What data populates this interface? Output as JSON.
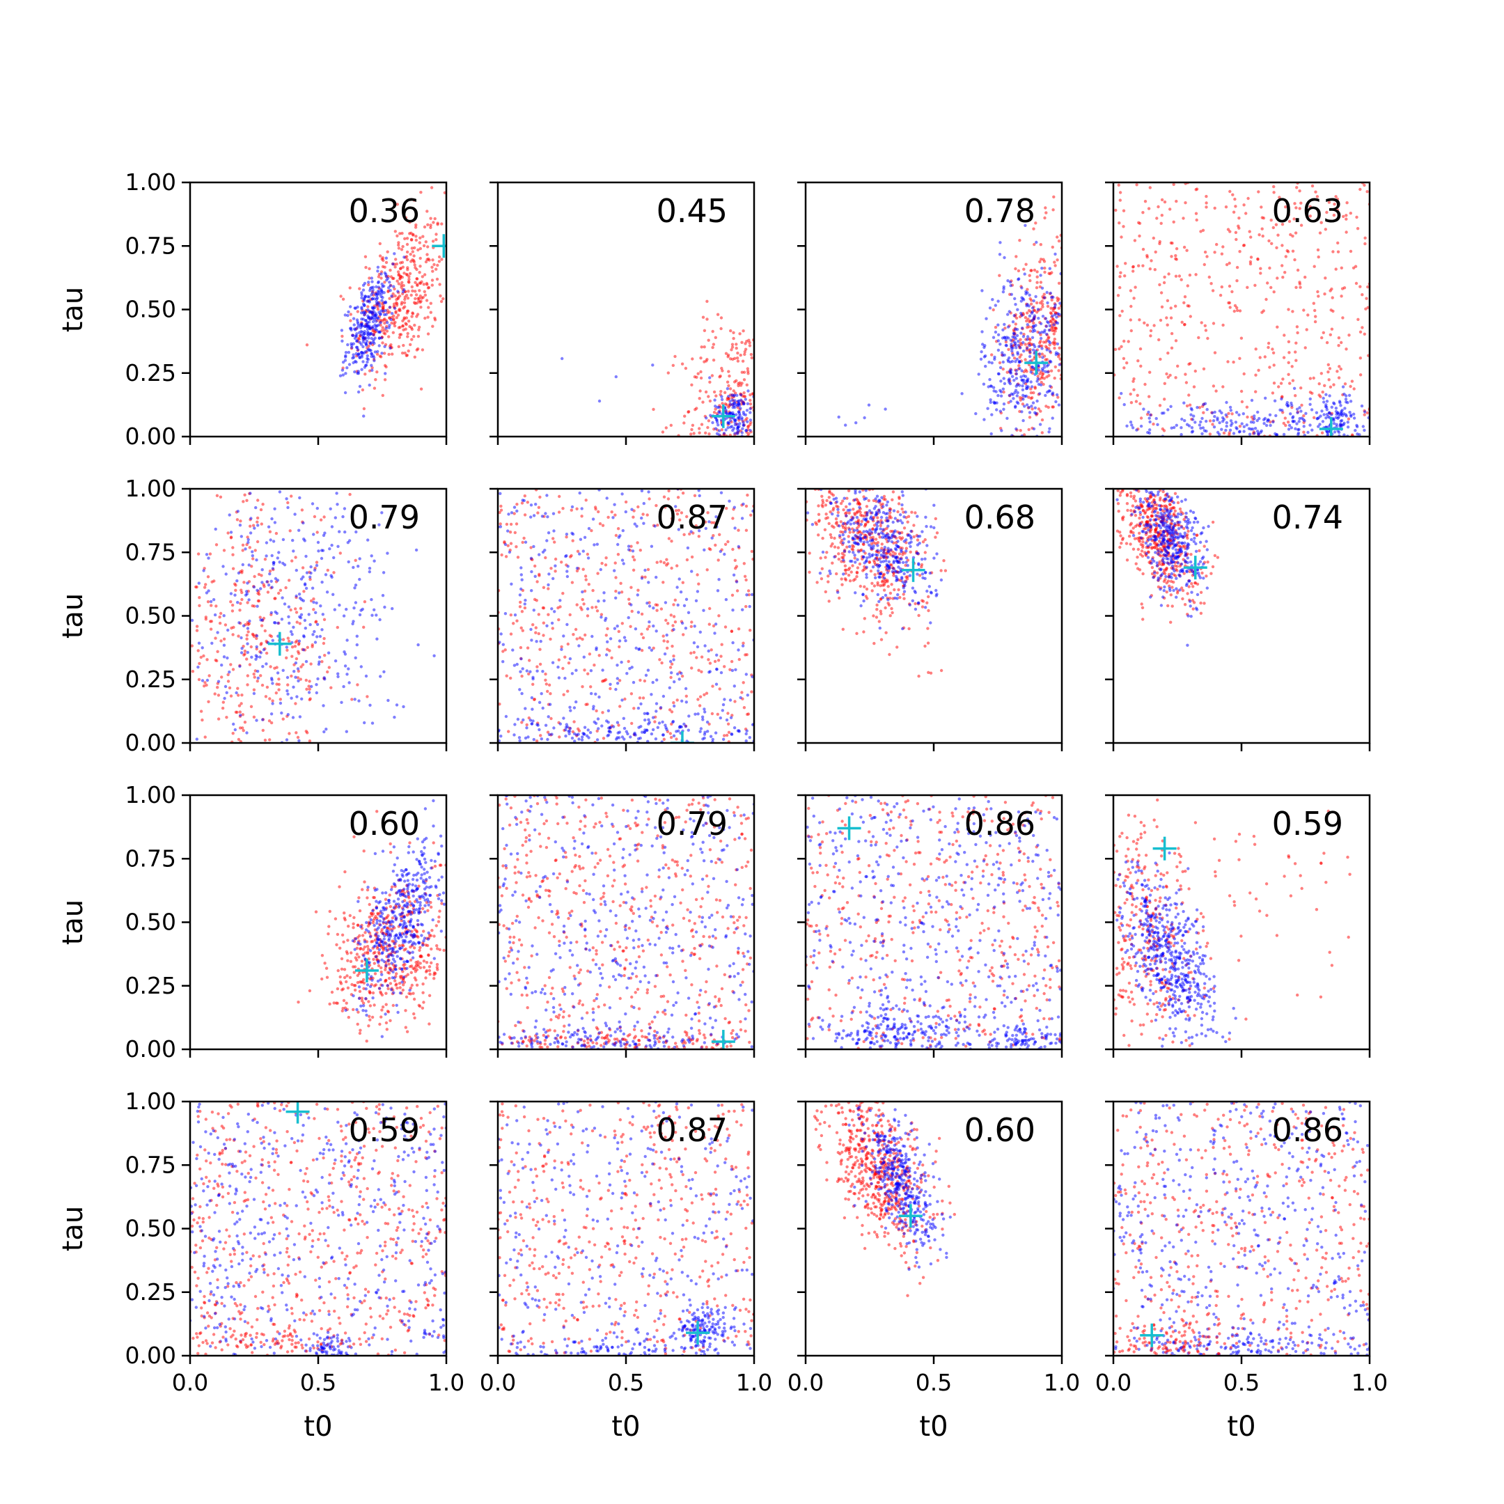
{
  "figure": {
    "rows": 4,
    "cols": 4,
    "sharex": true,
    "sharey": true,
    "xlim": [
      0,
      1
    ],
    "ylim": [
      0,
      1
    ],
    "xticks": [
      "0.0",
      "0.5",
      "1.0"
    ],
    "yticks": [
      "0.00",
      "0.25",
      "0.50",
      "0.75",
      "1.00"
    ],
    "xlabel": "t0",
    "ylabel": "tau",
    "colors": {
      "series_a": "#ff0000",
      "series_b": "#0000ff",
      "marker": "#17becf"
    }
  },
  "chart_data": [
    {
      "type": "scatter",
      "value_label": "0.36",
      "marker": {
        "x": 0.99,
        "y": 0.75
      },
      "clusters": [
        {
          "color": "series_a",
          "n": 420,
          "cx": 0.82,
          "cy": 0.55,
          "sx": 0.09,
          "sy": 0.16,
          "rho": 0.4
        },
        {
          "color": "series_b",
          "n": 320,
          "cx": 0.7,
          "cy": 0.44,
          "sx": 0.045,
          "sy": 0.1,
          "rho": 0.5
        }
      ]
    },
    {
      "type": "scatter",
      "value_label": "0.45",
      "marker": {
        "x": 0.88,
        "y": 0.08
      },
      "clusters": [
        {
          "color": "series_a",
          "n": 350,
          "cx": 0.92,
          "cy": 0.12,
          "sx": 0.1,
          "sy": 0.18,
          "rho": 0.1
        },
        {
          "color": "series_b",
          "n": 150,
          "cx": 0.92,
          "cy": 0.08,
          "sx": 0.04,
          "sy": 0.05,
          "rho": 0
        },
        {
          "color": "series_b",
          "n": 6,
          "cx": 0.25,
          "cy": 0.18,
          "sx": 0.18,
          "sy": 0.12,
          "rho": 0
        }
      ]
    },
    {
      "type": "scatter",
      "value_label": "0.78",
      "marker": {
        "x": 0.9,
        "y": 0.29
      },
      "clusters": [
        {
          "color": "series_a",
          "n": 380,
          "cx": 0.92,
          "cy": 0.4,
          "sx": 0.08,
          "sy": 0.2,
          "rho": 0.2
        },
        {
          "color": "series_b",
          "n": 380,
          "cx": 0.85,
          "cy": 0.32,
          "sx": 0.08,
          "sy": 0.18,
          "rho": 0.2
        },
        {
          "color": "series_b",
          "n": 8,
          "cx": 0.2,
          "cy": 0.05,
          "sx": 0.15,
          "sy": 0.05,
          "rho": 0
        }
      ]
    },
    {
      "type": "scatter",
      "value_label": "0.63",
      "marker": {
        "x": 0.85,
        "y": 0.03
      },
      "clusters": [
        {
          "color": "series_a",
          "n": 500,
          "uniform": true
        },
        {
          "color": "series_b",
          "n": 250,
          "cx": 0.5,
          "cy": 0.05,
          "sx": 0.3,
          "sy": 0.05,
          "rho": 0
        },
        {
          "color": "series_b",
          "n": 120,
          "cx": 0.87,
          "cy": 0.06,
          "sx": 0.05,
          "sy": 0.05,
          "rho": 0
        }
      ]
    },
    {
      "type": "scatter",
      "value_label": "0.79",
      "marker": {
        "x": 0.35,
        "y": 0.39
      },
      "clusters": [
        {
          "color": "series_a",
          "n": 400,
          "cx": 0.25,
          "cy": 0.4,
          "sx": 0.18,
          "sy": 0.3,
          "rho": 0
        },
        {
          "color": "series_b",
          "n": 420,
          "cx": 0.38,
          "cy": 0.5,
          "sx": 0.22,
          "sy": 0.3,
          "rho": 0
        }
      ]
    },
    {
      "type": "scatter",
      "value_label": "0.87",
      "marker": {
        "x": 0.72,
        "y": 0.0
      },
      "clusters": [
        {
          "color": "series_a",
          "n": 450,
          "uniform": true
        },
        {
          "color": "series_b",
          "n": 350,
          "uniform": true
        },
        {
          "color": "series_b",
          "n": 200,
          "cx": 0.5,
          "cy": 0.03,
          "sx": 0.35,
          "sy": 0.04,
          "rho": 0
        }
      ]
    },
    {
      "type": "scatter",
      "value_label": "0.68",
      "marker": {
        "x": 0.42,
        "y": 0.68
      },
      "clusters": [
        {
          "color": "series_a",
          "n": 520,
          "cx": 0.25,
          "cy": 0.8,
          "sx": 0.12,
          "sy": 0.16,
          "rho": -0.4
        },
        {
          "color": "series_b",
          "n": 380,
          "cx": 0.3,
          "cy": 0.78,
          "sx": 0.1,
          "sy": 0.13,
          "rho": -0.4
        }
      ]
    },
    {
      "type": "scatter",
      "value_label": "0.74",
      "marker": {
        "x": 0.32,
        "y": 0.69
      },
      "clusters": [
        {
          "color": "series_a",
          "n": 500,
          "cx": 0.17,
          "cy": 0.84,
          "sx": 0.08,
          "sy": 0.13,
          "rho": -0.5
        },
        {
          "color": "series_b",
          "n": 380,
          "cx": 0.22,
          "cy": 0.8,
          "sx": 0.07,
          "sy": 0.12,
          "rho": -0.5
        }
      ]
    },
    {
      "type": "scatter",
      "value_label": "0.60",
      "marker": {
        "x": 0.69,
        "y": 0.31
      },
      "clusters": [
        {
          "color": "series_a",
          "n": 520,
          "cx": 0.78,
          "cy": 0.38,
          "sx": 0.12,
          "sy": 0.16,
          "rho": 0.3
        },
        {
          "color": "series_b",
          "n": 420,
          "cx": 0.82,
          "cy": 0.5,
          "sx": 0.08,
          "sy": 0.15,
          "rho": 0.6
        }
      ]
    },
    {
      "type": "scatter",
      "value_label": "0.79",
      "marker": {
        "x": 0.88,
        "y": 0.03
      },
      "clusters": [
        {
          "color": "series_a",
          "n": 450,
          "uniform": true
        },
        {
          "color": "series_b",
          "n": 380,
          "uniform": true
        },
        {
          "color": "series_a",
          "n": 150,
          "cx": 0.5,
          "cy": 0.03,
          "sx": 0.35,
          "sy": 0.03,
          "rho": 0
        },
        {
          "color": "series_b",
          "n": 150,
          "cx": 0.5,
          "cy": 0.03,
          "sx": 0.35,
          "sy": 0.03,
          "rho": 0
        }
      ]
    },
    {
      "type": "scatter",
      "value_label": "0.86",
      "marker": {
        "x": 0.17,
        "y": 0.87
      },
      "clusters": [
        {
          "color": "series_a",
          "n": 420,
          "uniform": true
        },
        {
          "color": "series_b",
          "n": 420,
          "uniform": true
        },
        {
          "color": "series_b",
          "n": 200,
          "cx": 0.35,
          "cy": 0.06,
          "sx": 0.15,
          "sy": 0.05,
          "rho": 0
        },
        {
          "color": "series_b",
          "n": 100,
          "cx": 0.85,
          "cy": 0.03,
          "sx": 0.1,
          "sy": 0.03,
          "rho": 0
        }
      ]
    },
    {
      "type": "scatter",
      "value_label": "0.59",
      "marker": {
        "x": 0.2,
        "y": 0.79
      },
      "clusters": [
        {
          "color": "series_a",
          "n": 380,
          "cx": 0.12,
          "cy": 0.4,
          "sx": 0.12,
          "sy": 0.25,
          "rho": -0.3
        },
        {
          "color": "series_b",
          "n": 500,
          "cx": 0.22,
          "cy": 0.37,
          "sx": 0.09,
          "sy": 0.16,
          "rho": -0.6
        },
        {
          "color": "series_a",
          "n": 60,
          "cx": 0.55,
          "cy": 0.6,
          "sx": 0.25,
          "sy": 0.2,
          "rho": 0
        }
      ]
    },
    {
      "type": "scatter",
      "value_label": "0.59",
      "marker": {
        "x": 0.42,
        "y": 0.96
      },
      "clusters": [
        {
          "color": "series_a",
          "n": 500,
          "uniform": true
        },
        {
          "color": "series_b",
          "n": 450,
          "uniform": true
        },
        {
          "color": "series_a",
          "n": 120,
          "cx": 0.35,
          "cy": 0.05,
          "sx": 0.25,
          "sy": 0.05,
          "rho": 0
        },
        {
          "color": "series_b",
          "n": 60,
          "cx": 0.55,
          "cy": 0.03,
          "sx": 0.04,
          "sy": 0.03,
          "rho": 0
        }
      ]
    },
    {
      "type": "scatter",
      "value_label": "0.87",
      "marker": {
        "x": 0.78,
        "y": 0.09
      },
      "clusters": [
        {
          "color": "series_a",
          "n": 450,
          "uniform": true
        },
        {
          "color": "series_b",
          "n": 300,
          "uniform": true
        },
        {
          "color": "series_b",
          "n": 140,
          "cx": 0.8,
          "cy": 0.1,
          "sx": 0.05,
          "sy": 0.05,
          "rho": 0
        },
        {
          "color": "series_b",
          "n": 80,
          "cx": 0.45,
          "cy": 0.02,
          "sx": 0.2,
          "sy": 0.02,
          "rho": 0
        }
      ]
    },
    {
      "type": "scatter",
      "value_label": "0.60",
      "marker": {
        "x": 0.41,
        "y": 0.55
      },
      "clusters": [
        {
          "color": "series_a",
          "n": 560,
          "cx": 0.28,
          "cy": 0.73,
          "sx": 0.1,
          "sy": 0.15,
          "rho": -0.5
        },
        {
          "color": "series_b",
          "n": 380,
          "cx": 0.37,
          "cy": 0.68,
          "sx": 0.07,
          "sy": 0.13,
          "rho": -0.6
        }
      ]
    },
    {
      "type": "scatter",
      "value_label": "0.86",
      "marker": {
        "x": 0.15,
        "y": 0.08
      },
      "clusters": [
        {
          "color": "series_a",
          "n": 420,
          "uniform": true
        },
        {
          "color": "series_b",
          "n": 420,
          "uniform": true
        },
        {
          "color": "series_b",
          "n": 150,
          "cx": 0.5,
          "cy": 0.03,
          "sx": 0.3,
          "sy": 0.03,
          "rho": 0
        },
        {
          "color": "series_a",
          "n": 100,
          "cx": 0.2,
          "cy": 0.05,
          "sx": 0.15,
          "sy": 0.05,
          "rho": 0
        }
      ]
    }
  ]
}
